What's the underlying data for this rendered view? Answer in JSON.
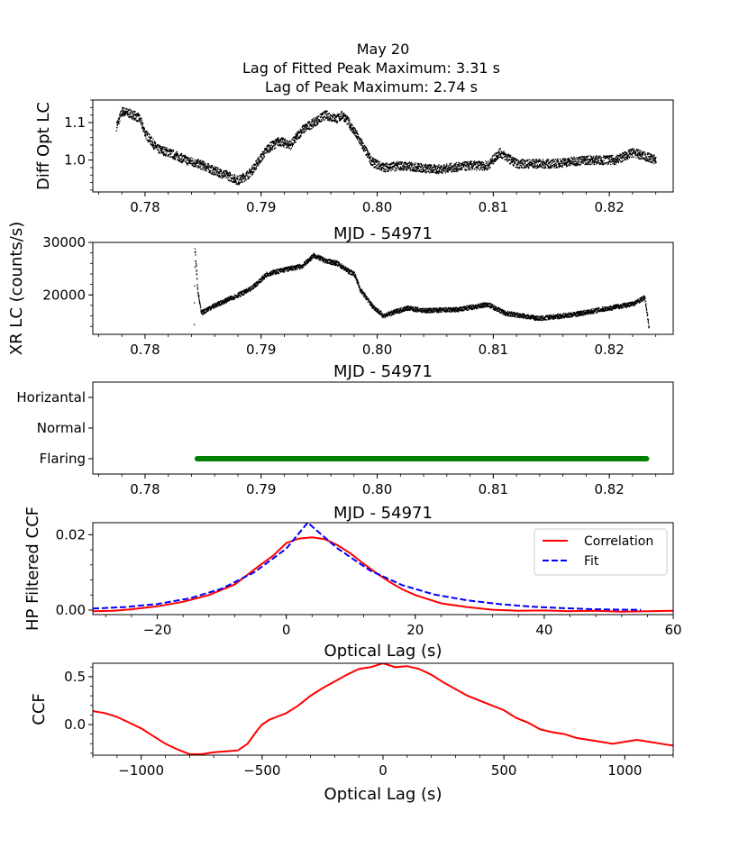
{
  "figure_title": [
    "May 20",
    "Lag of Fitted Peak Maximum: 3.31 s",
    "Lag of Peak Maximum: 2.74 s"
  ],
  "chart_data": [
    {
      "id": "opt",
      "type": "scatter",
      "ylabel": "Diff Opt LC",
      "xlabel": "MJD - 54971",
      "xlim": [
        0.7755,
        0.8255
      ],
      "ylim": [
        0.915,
        1.16
      ],
      "xticks": [
        0.78,
        0.79,
        0.8,
        0.81,
        0.82
      ],
      "xtick_labels": [
        "0.78",
        "0.79",
        "0.80",
        "0.81",
        "0.82"
      ],
      "yticks": [
        1.0,
        1.1
      ],
      "ytick_labels": [
        "1.0",
        "1.1"
      ],
      "color": "#000000",
      "series_outline": [
        [
          0.7775,
          1.09
        ],
        [
          0.778,
          1.13
        ],
        [
          0.7785,
          1.125
        ],
        [
          0.779,
          1.12
        ],
        [
          0.7795,
          1.11
        ],
        [
          0.78,
          1.07
        ],
        [
          0.7805,
          1.05
        ],
        [
          0.781,
          1.03
        ],
        [
          0.782,
          1.02
        ],
        [
          0.7835,
          1.0
        ],
        [
          0.785,
          0.985
        ],
        [
          0.786,
          0.97
        ],
        [
          0.787,
          0.96
        ],
        [
          0.788,
          0.945
        ],
        [
          0.789,
          0.965
        ],
        [
          0.7905,
          1.03
        ],
        [
          0.7915,
          1.05
        ],
        [
          0.7925,
          1.04
        ],
        [
          0.7935,
          1.08
        ],
        [
          0.7945,
          1.1
        ],
        [
          0.7955,
          1.12
        ],
        [
          0.7965,
          1.11
        ],
        [
          0.797,
          1.12
        ],
        [
          0.7975,
          1.1
        ],
        [
          0.7985,
          1.05
        ],
        [
          0.7995,
          0.995
        ],
        [
          0.8005,
          0.98
        ],
        [
          0.802,
          0.985
        ],
        [
          0.805,
          0.975
        ],
        [
          0.808,
          0.985
        ],
        [
          0.8095,
          0.985
        ],
        [
          0.8105,
          1.02
        ],
        [
          0.812,
          0.99
        ],
        [
          0.815,
          0.99
        ],
        [
          0.818,
          1.0
        ],
        [
          0.8205,
          1.0
        ],
        [
          0.822,
          1.02
        ],
        [
          0.824,
          1.0
        ]
      ]
    },
    {
      "id": "xr",
      "type": "scatter",
      "ylabel": "XR LC (counts/s)",
      "xlabel": "MJD - 54971",
      "xlim": [
        0.7755,
        0.8255
      ],
      "ylim": [
        12500,
        30000
      ],
      "xticks": [
        0.78,
        0.79,
        0.8,
        0.81,
        0.82
      ],
      "xtick_labels": [
        "0.78",
        "0.79",
        "0.80",
        "0.81",
        "0.82"
      ],
      "yticks": [
        20000,
        30000
      ],
      "ytick_labels": [
        "20000",
        "30000"
      ],
      "color": "#000000",
      "series_outline": [
        [
          0.7842,
          14500
        ],
        [
          0.78425,
          29000
        ],
        [
          0.7845,
          21000
        ],
        [
          0.7848,
          16500
        ],
        [
          0.7855,
          17500
        ],
        [
          0.787,
          19000
        ],
        [
          0.789,
          21000
        ],
        [
          0.7905,
          24000
        ],
        [
          0.792,
          24800
        ],
        [
          0.7935,
          25500
        ],
        [
          0.7945,
          27500
        ],
        [
          0.7955,
          26500
        ],
        [
          0.7965,
          26000
        ],
        [
          0.7975,
          24500
        ],
        [
          0.798,
          24000
        ],
        [
          0.7985,
          21000
        ],
        [
          0.7995,
          18000
        ],
        [
          0.8005,
          16000
        ],
        [
          0.8025,
          17500
        ],
        [
          0.804,
          17000
        ],
        [
          0.807,
          17200
        ],
        [
          0.8095,
          18200
        ],
        [
          0.811,
          16500
        ],
        [
          0.814,
          15500
        ],
        [
          0.817,
          16300
        ],
        [
          0.8195,
          17300
        ],
        [
          0.822,
          18300
        ],
        [
          0.823,
          19500
        ],
        [
          0.8232,
          16800
        ],
        [
          0.8234,
          13500
        ]
      ]
    },
    {
      "id": "state",
      "type": "line",
      "xlabel": "MJD - 54971",
      "xlim": [
        0.7755,
        0.8255
      ],
      "xticks": [
        0.78,
        0.79,
        0.8,
        0.81,
        0.82
      ],
      "xtick_labels": [
        "0.78",
        "0.79",
        "0.80",
        "0.81",
        "0.82"
      ],
      "categories": [
        "Horizantal",
        "Normal",
        "Flaring"
      ],
      "segments": [
        {
          "state": "Flaring",
          "x0": 0.7845,
          "x1": 0.8232
        }
      ],
      "color": "#008000"
    },
    {
      "id": "hp",
      "type": "line",
      "ylabel": "HP Filtered CCF",
      "xlabel": "Optical Lag (s)",
      "xlim": [
        -30,
        60
      ],
      "ylim": [
        -0.0012,
        0.0232
      ],
      "xticks": [
        -20,
        0,
        20,
        40,
        60
      ],
      "xtick_labels": [
        "−20",
        "0",
        "20",
        "40",
        "60"
      ],
      "yticks": [
        0.0,
        0.02
      ],
      "ytick_labels": [
        "0.00",
        "0.02"
      ],
      "legend": [
        "Correlation",
        "Fit"
      ],
      "legend_loc": "upper right",
      "series": [
        {
          "name": "Correlation",
          "color": "#ff0000",
          "dash": "solid",
          "x": [
            -30,
            -27,
            -24,
            -20,
            -16,
            -12,
            -8,
            -4,
            -2,
            0,
            2,
            4,
            6,
            8,
            10,
            12,
            14,
            16,
            18,
            20,
            24,
            28,
            32,
            36,
            40,
            44,
            48,
            52,
            56,
            60
          ],
          "y": [
            -0.0003,
            -0.0002,
            0.0002,
            0.001,
            0.0022,
            0.004,
            0.0068,
            0.012,
            0.0145,
            0.0178,
            0.019,
            0.0193,
            0.0188,
            0.0172,
            0.015,
            0.0123,
            0.0098,
            0.0075,
            0.0055,
            0.004,
            0.0018,
            0.0008,
            0.0001,
            -0.0002,
            -0.0001,
            -0.0003,
            -0.0002,
            -0.0004,
            -0.0003,
            -0.0002
          ]
        },
        {
          "name": "Fit",
          "color": "#0000ff",
          "dash": "dashed",
          "x": [
            -30,
            -25,
            -20,
            -15,
            -10,
            -5,
            0,
            3.31,
            8,
            13,
            18,
            23,
            28,
            33,
            38,
            43,
            48,
            53,
            55
          ],
          "y": [
            0.0004,
            0.0008,
            0.0016,
            0.0031,
            0.0057,
            0.01,
            0.0163,
            0.0232,
            0.0163,
            0.0105,
            0.0066,
            0.0041,
            0.0026,
            0.0016,
            0.0009,
            0.0005,
            0.0002,
            0.0001,
            0.0001
          ]
        }
      ]
    },
    {
      "id": "ccf",
      "type": "line",
      "ylabel": "CCF",
      "xlabel": "Optical Lag (s)",
      "xlim": [
        -1200,
        1200
      ],
      "ylim": [
        -0.32,
        0.64
      ],
      "xticks": [
        -1000,
        -500,
        0,
        500,
        1000
      ],
      "xtick_labels": [
        "−1000",
        "−500",
        "0",
        "500",
        "1000"
      ],
      "yticks": [
        0.0,
        0.5
      ],
      "ytick_labels": [
        "0.0",
        "0.5"
      ],
      "series": [
        {
          "name": "CCF",
          "color": "#ff0000",
          "x": [
            -1200,
            -1150,
            -1100,
            -1050,
            -1000,
            -950,
            -900,
            -850,
            -800,
            -750,
            -700,
            -650,
            -600,
            -560,
            -520,
            -500,
            -470,
            -440,
            -400,
            -350,
            -300,
            -250,
            -200,
            -150,
            -100,
            -50,
            0,
            50,
            100,
            150,
            200,
            250,
            300,
            350,
            400,
            450,
            500,
            550,
            600,
            650,
            700,
            750,
            800,
            850,
            900,
            950,
            1000,
            1050,
            1100,
            1150,
            1200
          ],
          "y": [
            0.14,
            0.12,
            0.08,
            0.02,
            -0.04,
            -0.12,
            -0.2,
            -0.26,
            -0.31,
            -0.31,
            -0.29,
            -0.28,
            -0.27,
            -0.2,
            -0.06,
            0.0,
            0.05,
            0.08,
            0.12,
            0.2,
            0.3,
            0.38,
            0.45,
            0.52,
            0.58,
            0.6,
            0.64,
            0.6,
            0.61,
            0.58,
            0.52,
            0.44,
            0.37,
            0.3,
            0.25,
            0.2,
            0.15,
            0.07,
            0.02,
            -0.05,
            -0.08,
            -0.1,
            -0.14,
            -0.16,
            -0.18,
            -0.2,
            -0.18,
            -0.16,
            -0.18,
            -0.2,
            -0.22
          ]
        }
      ]
    }
  ]
}
